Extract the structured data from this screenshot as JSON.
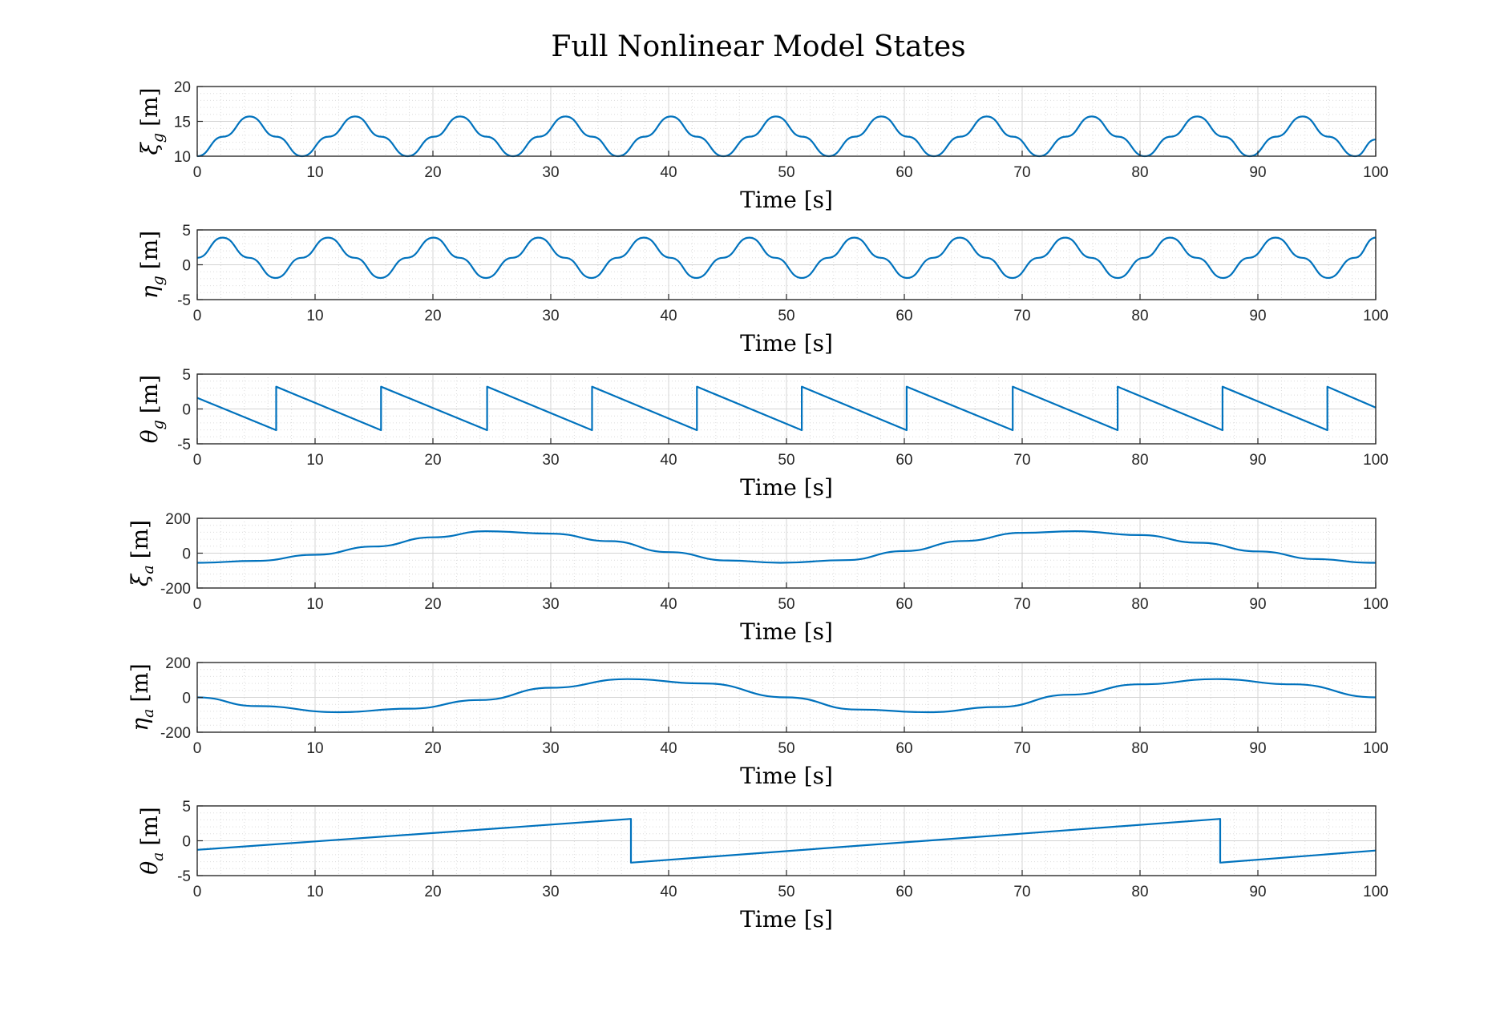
{
  "chart_data": {
    "title": "Full Nonlinear Model States",
    "type": "line",
    "line_color": "#0072BD",
    "grid": "major and minor",
    "subplots": [
      {
        "id": "xi_g",
        "ylabel_sym": "ξ",
        "ylabel_sub": "g",
        "ylabel_unit": "[m]",
        "xlabel": "Time [s]",
        "xlim": [
          0,
          100
        ],
        "ylim": [
          10,
          20
        ],
        "xticks": [
          0,
          10,
          20,
          30,
          40,
          50,
          60,
          70,
          80,
          90,
          100
        ],
        "yticks": [
          10,
          15,
          20
        ],
        "series": {
          "x": [
            0,
            2.2,
            4.45,
            6.7,
            8.9,
            11.15,
            13.4,
            15.6,
            17.85,
            20.1,
            22.3,
            24.55,
            26.8,
            29.0,
            31.25,
            33.5,
            35.7,
            37.95,
            40.2,
            42.4,
            44.65,
            46.9,
            49.1,
            51.35,
            53.6,
            55.8,
            58.05,
            60.3,
            62.5,
            64.75,
            67.0,
            69.2,
            71.45,
            73.7,
            75.9,
            78.15,
            80.4,
            82.6,
            84.85,
            87.1,
            89.3,
            91.55,
            93.8,
            96.0,
            98.25,
            100
          ],
          "y": [
            10.0,
            12.8,
            15.7,
            12.8,
            10.0,
            12.8,
            15.7,
            12.8,
            10.0,
            12.8,
            15.7,
            12.8,
            10.0,
            12.8,
            15.7,
            12.8,
            10.0,
            12.8,
            15.7,
            12.8,
            10.0,
            12.8,
            15.7,
            12.8,
            10.0,
            12.8,
            15.7,
            12.8,
            10.0,
            12.8,
            15.7,
            12.8,
            10.0,
            12.8,
            15.7,
            12.8,
            10.0,
            12.8,
            15.7,
            12.8,
            10.0,
            12.8,
            15.7,
            12.8,
            10.0,
            12.4
          ]
        }
      },
      {
        "id": "eta_g",
        "ylabel_sym": "η",
        "ylabel_sub": "g",
        "ylabel_unit": "[m]",
        "xlabel": "Time [s]",
        "xlim": [
          0,
          100
        ],
        "ylim": [
          -5,
          5
        ],
        "xticks": [
          0,
          10,
          20,
          30,
          40,
          50,
          60,
          70,
          80,
          90,
          100
        ],
        "yticks": [
          -5,
          0,
          5
        ],
        "series": {
          "x": [
            0,
            2.15,
            4.4,
            6.65,
            8.85,
            11.1,
            13.35,
            15.55,
            17.8,
            20.05,
            22.25,
            24.5,
            26.75,
            28.95,
            31.2,
            33.45,
            35.65,
            37.9,
            40.15,
            42.35,
            44.6,
            46.85,
            49.05,
            51.3,
            53.55,
            55.75,
            58.0,
            60.25,
            62.45,
            64.7,
            66.95,
            69.15,
            71.4,
            73.65,
            75.85,
            78.1,
            80.35,
            82.55,
            84.8,
            87.05,
            89.25,
            91.5,
            93.75,
            95.95,
            98.2,
            100
          ],
          "y": [
            1.0,
            3.9,
            1.0,
            -1.9,
            1.0,
            3.9,
            1.0,
            -1.9,
            1.0,
            3.9,
            1.0,
            -1.9,
            1.0,
            3.9,
            1.0,
            -1.9,
            1.0,
            3.9,
            1.0,
            -1.9,
            1.0,
            3.9,
            1.0,
            -1.9,
            1.0,
            3.9,
            1.0,
            -1.9,
            1.0,
            3.9,
            1.0,
            -1.9,
            1.0,
            3.9,
            1.0,
            -1.9,
            1.0,
            3.9,
            1.0,
            -1.9,
            1.0,
            3.9,
            1.0,
            -1.9,
            1.0,
            3.9
          ]
        }
      },
      {
        "id": "theta_g",
        "ylabel_sym": "θ",
        "ylabel_sub": "g",
        "ylabel_unit": "[m]",
        "xlabel": "Time [s]",
        "xlim": [
          0,
          100
        ],
        "ylim": [
          -5,
          5
        ],
        "xticks": [
          0,
          10,
          20,
          30,
          40,
          50,
          60,
          70,
          80,
          90,
          100
        ],
        "yticks": [
          -5,
          0,
          5
        ],
        "series": {
          "x": [
            0,
            6.7,
            6.7,
            15.6,
            15.6,
            24.6,
            24.6,
            33.5,
            33.5,
            42.4,
            42.4,
            51.3,
            51.3,
            60.2,
            60.2,
            69.2,
            69.2,
            78.1,
            78.1,
            87.0,
            87.0,
            95.9,
            95.9,
            100
          ],
          "y": [
            1.6,
            -3.05,
            3.2,
            -3.05,
            3.2,
            -3.05,
            3.2,
            -3.05,
            3.2,
            -3.05,
            3.2,
            -3.05,
            3.2,
            -3.05,
            3.2,
            -3.05,
            3.2,
            -3.05,
            3.2,
            -3.05,
            3.2,
            -3.05,
            3.2,
            0.2
          ]
        }
      },
      {
        "id": "xi_a",
        "ylabel_sym": "ξ",
        "ylabel_sub": "a",
        "ylabel_unit": "[m]",
        "xlabel": "Time [s]",
        "xlim": [
          0,
          100
        ],
        "ylim": [
          -200,
          200
        ],
        "xticks": [
          0,
          10,
          20,
          30,
          40,
          50,
          60,
          70,
          80,
          90,
          100
        ],
        "yticks": [
          -200,
          0,
          200
        ],
        "series": {
          "x": [
            0,
            5,
            10,
            15,
            20,
            24.5,
            30,
            35,
            40,
            45,
            49.5,
            55,
            60,
            65,
            70,
            74.5,
            80,
            85,
            90,
            95,
            99.5,
            100
          ],
          "y": [
            -55,
            -44,
            -9,
            38,
            91,
            126,
            112,
            69,
            6,
            -42,
            -55,
            -40,
            12,
            70,
            117,
            126,
            104,
            60,
            10,
            -34,
            -55,
            -55
          ]
        }
      },
      {
        "id": "eta_a",
        "ylabel_sym": "η",
        "ylabel_sub": "a",
        "ylabel_unit": "[m]",
        "xlabel": "Time [s]",
        "xlim": [
          0,
          100
        ],
        "ylim": [
          -200,
          200
        ],
        "xticks": [
          0,
          10,
          20,
          30,
          40,
          50,
          60,
          70,
          80,
          90,
          100
        ],
        "yticks": [
          -200,
          0,
          200
        ],
        "series": {
          "x": [
            0,
            5,
            12,
            18,
            24,
            30,
            36.5,
            43,
            50,
            56,
            62,
            68,
            74,
            80,
            86.5,
            93,
            100
          ],
          "y": [
            0,
            -50,
            -85,
            -65,
            -15,
            55,
            105,
            80,
            0,
            -70,
            -85,
            -55,
            15,
            75,
            105,
            75,
            0
          ]
        }
      },
      {
        "id": "theta_a",
        "ylabel_sym": "θ",
        "ylabel_sub": "a",
        "ylabel_unit": "[m]",
        "xlabel": "Time [s]",
        "xlim": [
          0,
          100
        ],
        "ylim": [
          -5,
          5
        ],
        "xticks": [
          0,
          10,
          20,
          30,
          40,
          50,
          60,
          70,
          80,
          90,
          100
        ],
        "yticks": [
          -5,
          0,
          5
        ],
        "series": {
          "x": [
            0,
            36.8,
            36.8,
            86.8,
            86.8,
            100
          ],
          "y": [
            -1.3,
            3.14,
            -3.14,
            3.14,
            -3.14,
            -1.4
          ]
        }
      }
    ]
  }
}
